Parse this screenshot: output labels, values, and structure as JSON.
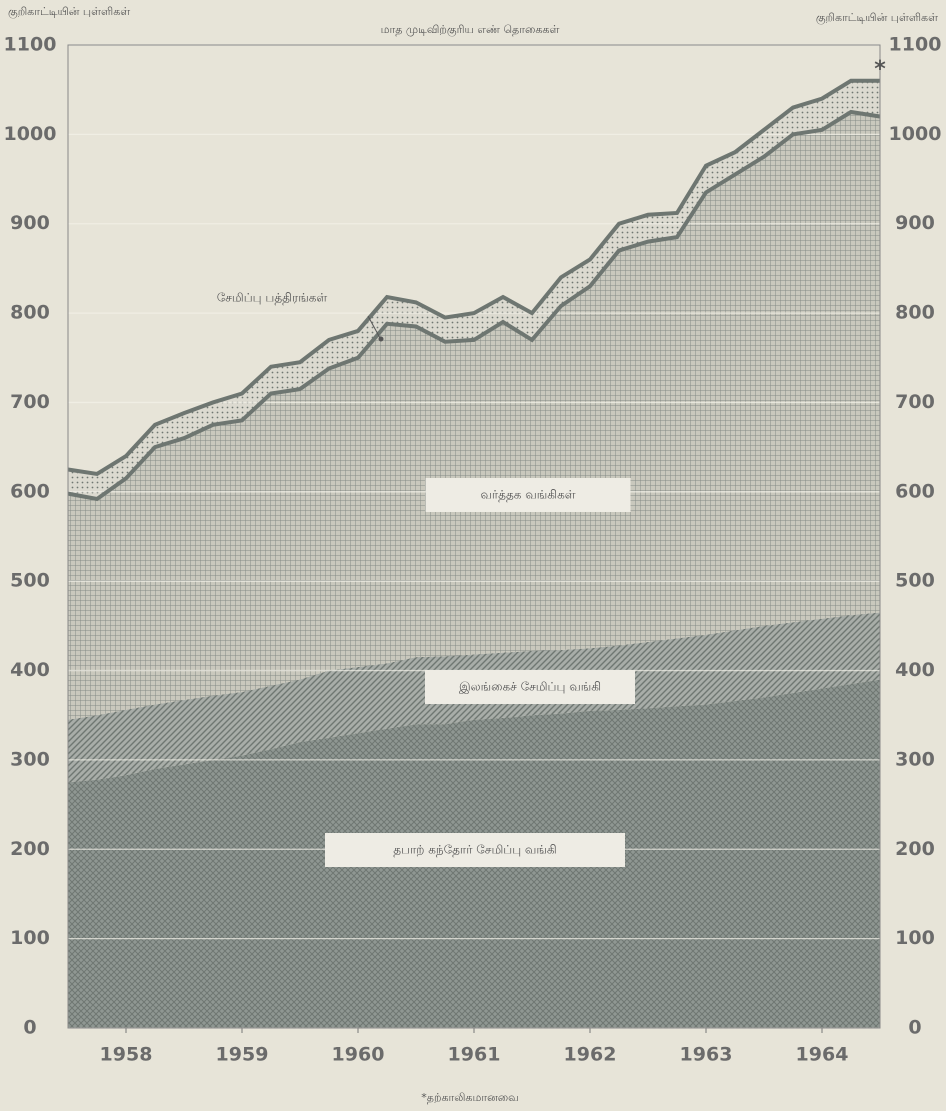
{
  "chart_data": {
    "type": "stacked_area",
    "title": "மாத முடிவிற்குரிய எண் தொகைகள்",
    "y_label_left": "குறிகாட்டியின் புள்ளிகள்",
    "y_label_right": "குறிகாட்டியின் புள்ளிகள்",
    "annotation": "*",
    "footnote": "*தற்காலிகமானவை",
    "x": [
      1958,
      1958.25,
      1958.5,
      1958.75,
      1959,
      1959.25,
      1959.5,
      1959.75,
      1960,
      1960.25,
      1960.5,
      1960.75,
      1961,
      1961.25,
      1961.5,
      1961.75,
      1962,
      1962.25,
      1962.5,
      1962.75,
      1963,
      1963.25,
      1963.5,
      1963.75,
      1964,
      1964.25,
      1964.5,
      1964.75,
      1965
    ],
    "xlim": [
      1958,
      1965
    ],
    "xticks": [
      {
        "value": 1958.5,
        "label": "1958"
      },
      {
        "value": 1959.5,
        "label": "1959"
      },
      {
        "value": 1960.5,
        "label": "1960"
      },
      {
        "value": 1961.5,
        "label": "1961"
      },
      {
        "value": 1962.5,
        "label": "1962"
      },
      {
        "value": 1963.5,
        "label": "1963"
      },
      {
        "value": 1964.5,
        "label": "1964"
      }
    ],
    "ylim": [
      0,
      1100
    ],
    "yticks": [
      0,
      100,
      200,
      300,
      400,
      500,
      600,
      700,
      800,
      900,
      1000,
      1100
    ],
    "grid": true,
    "series": [
      {
        "name": "தபாற் கந்தோர் சேமிப்பு வங்கி",
        "color": "#8f9792",
        "pattern": "crosshatch",
        "values": [
          275,
          278,
          283,
          290,
          295,
          300,
          305,
          312,
          320,
          325,
          330,
          335,
          340,
          340,
          345,
          347,
          350,
          352,
          355,
          356,
          358,
          360,
          362,
          366,
          370,
          375,
          380,
          385,
          390
        ]
      },
      {
        "name": "இலங்கைச் சேமிப்பு வங்கி",
        "color": "#9ea39f",
        "pattern": "diagonal",
        "values": [
          70,
          72,
          73,
          72,
          72,
          72,
          71,
          71,
          70,
          75,
          74,
          73,
          75,
          76,
          73,
          73,
          72,
          71,
          70,
          72,
          74,
          76,
          78,
          79,
          80,
          79,
          78,
          77,
          75
        ]
      },
      {
        "name": "வர்த்தக வங்கிகள்",
        "color": "#a9aea9",
        "pattern": "grid",
        "values": [
          253,
          242,
          259,
          288,
          293,
          303,
          304,
          327,
          325,
          338,
          346,
          380,
          370,
          352,
          352,
          370,
          348,
          385,
          405,
          442,
          448,
          449,
          495,
          510,
          525,
          546,
          547,
          563,
          555
        ]
      },
      {
        "name": "சேமிப்பு பத்திரங்கள்",
        "color": "#d3d1c6",
        "pattern": "dots",
        "values": [
          27,
          28,
          25,
          25,
          28,
          25,
          30,
          30,
          30,
          32,
          30,
          30,
          27,
          27,
          30,
          28,
          30,
          32,
          30,
          30,
          30,
          27,
          30,
          25,
          30,
          30,
          35,
          35,
          40
        ]
      }
    ]
  }
}
